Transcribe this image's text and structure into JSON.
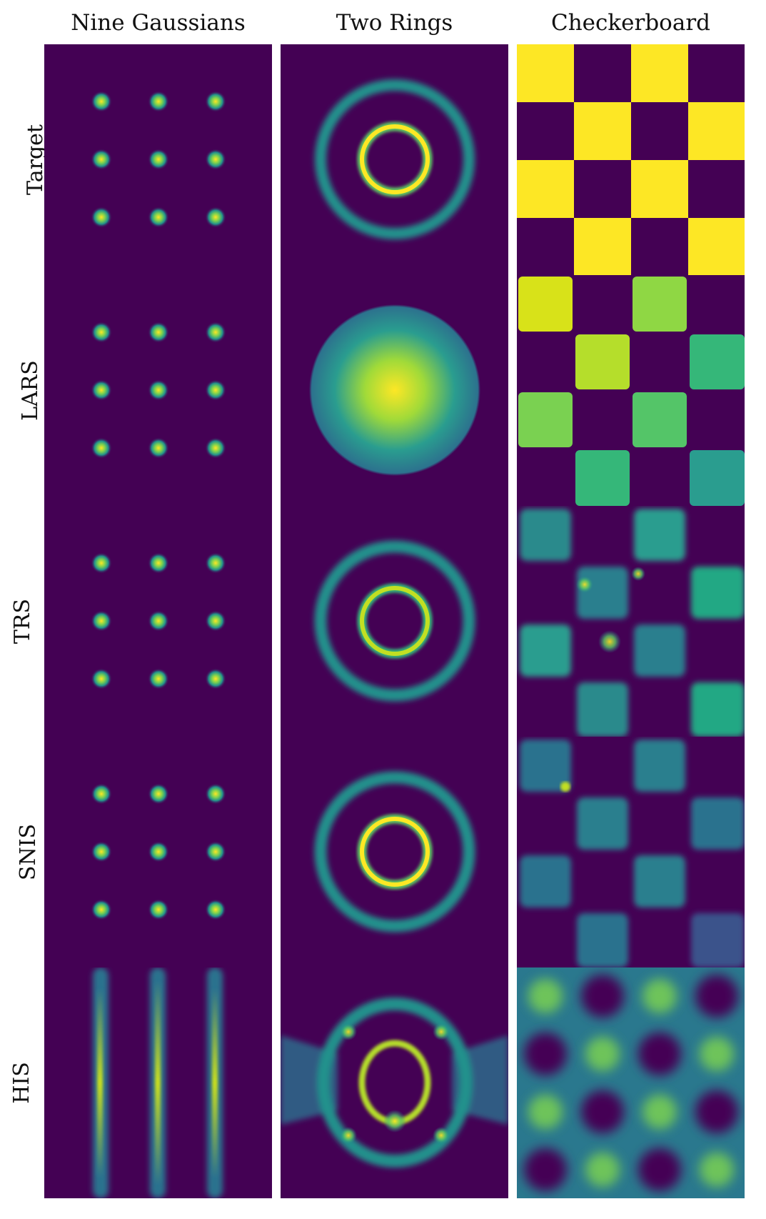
{
  "columns": [
    "Nine Gaussians",
    "Two Rings",
    "Checkerboard"
  ],
  "rows": [
    "Target",
    "LARS",
    "TRS",
    "SNIS",
    "HIS"
  ],
  "colors": {
    "background": "#440154",
    "low": "#3b528b",
    "mid": "#21918c",
    "high": "#5ec962",
    "peak": "#fde725"
  }
}
